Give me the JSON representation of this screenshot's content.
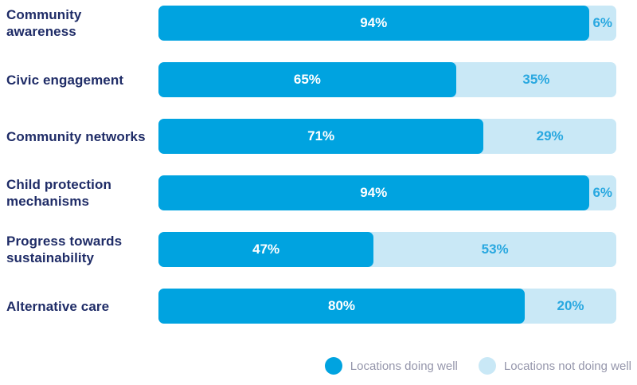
{
  "colors": {
    "bar_dark": "#00A3E0",
    "bar_light": "#C9E8F6",
    "label_navy": "#1F2C67",
    "value_blue": "#29A8E0",
    "legend_text": "#9596AB",
    "background": "#FFFFFF"
  },
  "chart_data": {
    "type": "bar",
    "orientation": "horizontal",
    "stacked": true,
    "unit": "%",
    "x_range": [
      0,
      100
    ],
    "grid": false,
    "legend_position": "bottom-right",
    "categories": [
      "Community awareness",
      "Civic engagement",
      "Community networks",
      "Child protection mechanisms",
      "Progress towards sustainability",
      "Alternative care"
    ],
    "series": [
      {
        "name": "Locations doing well",
        "color": "#00A3E0",
        "values": [
          94,
          65,
          71,
          94,
          47,
          80
        ],
        "labels": [
          "94%",
          "65%",
          "71%",
          "94%",
          "47%",
          "80%"
        ]
      },
      {
        "name": "Locations not doing well",
        "color": "#C9E8F6",
        "values": [
          6,
          35,
          29,
          6,
          53,
          20
        ],
        "labels": [
          "6%",
          "35%",
          "29%",
          "6%",
          "53%",
          "20%"
        ]
      }
    ]
  }
}
